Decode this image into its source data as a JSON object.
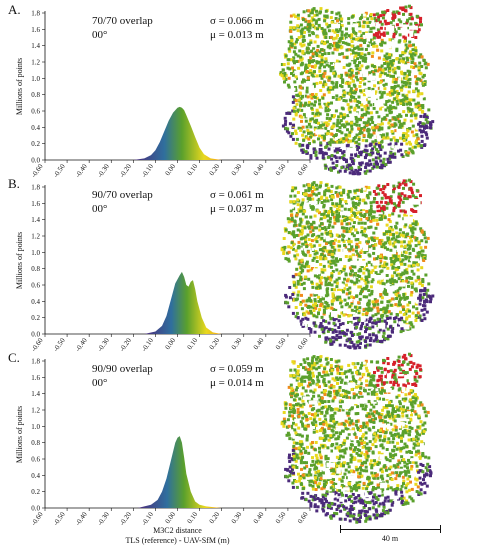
{
  "panels": [
    {
      "letter": "A.",
      "overlap": "70/70 overlap",
      "angle": "00°",
      "sigma": "σ = 0.066 m",
      "mu": "μ = 0.013 m"
    },
    {
      "letter": "B.",
      "overlap": "90/70 overlap",
      "angle": "00°",
      "sigma": "σ = 0.061 m",
      "mu": "μ = 0.037 m"
    },
    {
      "letter": "C.",
      "overlap": "90/90 overlap",
      "angle": "00°",
      "sigma": "σ = 0.059 m",
      "mu": "μ = 0.014 m"
    }
  ],
  "xlabel_line1": "M3C2 distance",
  "xlabel_line2": "TLS (reference) - UAV-SfM (m)",
  "scale_label": "40 m",
  "colors": {
    "low": "#4b2a7a",
    "mid": "#5aa02c",
    "high": "#e8d81e",
    "red": "#d6202a"
  },
  "chart_data": [
    {
      "type": "area",
      "title": "70/70 overlap",
      "xlabel": "M3C2 distance TLS (reference) - UAV-SfM (m)",
      "ylabel": "Millions of points",
      "xlim": [
        -0.6,
        0.6
      ],
      "ylim": [
        0,
        1.8
      ],
      "xticks": [
        "-0.60",
        "-0.50",
        "-0.40",
        "-0.30",
        "-0.20",
        "-0.10",
        "0.00",
        "0.10",
        "0.20",
        "0.30",
        "0.40",
        "0.50",
        "0.60"
      ],
      "yticks": [
        "0.0",
        "0.2",
        "0.4",
        "0.6",
        "0.8",
        "1.0",
        "1.2",
        "1.4",
        "1.6",
        "1.8"
      ],
      "x": [
        -0.2,
        -0.15,
        -0.12,
        -0.1,
        -0.08,
        -0.06,
        -0.04,
        -0.02,
        0.0,
        0.01,
        0.02,
        0.03,
        0.04,
        0.06,
        0.08,
        0.1,
        0.12,
        0.15,
        0.2
      ],
      "values": [
        0,
        0.02,
        0.06,
        0.12,
        0.22,
        0.35,
        0.48,
        0.58,
        0.64,
        0.65,
        0.64,
        0.61,
        0.55,
        0.42,
        0.28,
        0.15,
        0.07,
        0.02,
        0
      ]
    },
    {
      "type": "area",
      "title": "90/70 overlap",
      "xlabel": "M3C2 distance TLS (reference) - UAV-SfM (m)",
      "ylabel": "Millions of points",
      "xlim": [
        -0.6,
        0.6
      ],
      "ylim": [
        0,
        1.8
      ],
      "xticks": [
        "-0.60",
        "-0.50",
        "-0.40",
        "-0.30",
        "-0.20",
        "-0.10",
        "0.00",
        "0.10",
        "0.20",
        "0.30",
        "0.40",
        "0.50",
        "0.60"
      ],
      "yticks": [
        "0.0",
        "0.2",
        "0.4",
        "0.6",
        "0.8",
        "1.0",
        "1.2",
        "1.4",
        "1.6",
        "1.8"
      ],
      "x": [
        -0.15,
        -0.1,
        -0.07,
        -0.05,
        -0.03,
        -0.01,
        0.01,
        0.02,
        0.03,
        0.04,
        0.05,
        0.06,
        0.07,
        0.08,
        0.09,
        0.11,
        0.13,
        0.16,
        0.2
      ],
      "values": [
        0,
        0.03,
        0.1,
        0.22,
        0.42,
        0.62,
        0.72,
        0.76,
        0.7,
        0.6,
        0.58,
        0.64,
        0.66,
        0.55,
        0.4,
        0.2,
        0.08,
        0.02,
        0
      ]
    },
    {
      "type": "area",
      "title": "90/90 overlap",
      "xlabel": "M3C2 distance TLS (reference) - UAV-SfM (m)",
      "ylabel": "Millions of points",
      "xlim": [
        -0.6,
        0.6
      ],
      "ylim": [
        0,
        1.8
      ],
      "xticks": [
        "-0.60",
        "-0.50",
        "-0.40",
        "-0.30",
        "-0.20",
        "-0.10",
        "0.00",
        "0.10",
        "0.20",
        "0.30",
        "0.40",
        "0.50",
        "0.60"
      ],
      "yticks": [
        "0.0",
        "0.2",
        "0.4",
        "0.6",
        "0.8",
        "1.0",
        "1.2",
        "1.4",
        "1.6",
        "1.8"
      ],
      "x": [
        -0.18,
        -0.12,
        -0.09,
        -0.07,
        -0.05,
        -0.03,
        -0.01,
        0.0,
        0.01,
        0.02,
        0.03,
        0.04,
        0.06,
        0.08,
        0.1,
        0.13,
        0.16,
        0.2
      ],
      "values": [
        0,
        0.04,
        0.1,
        0.2,
        0.36,
        0.58,
        0.8,
        0.86,
        0.88,
        0.8,
        0.62,
        0.42,
        0.2,
        0.08,
        0.04,
        0.02,
        0.01,
        0
      ]
    }
  ]
}
